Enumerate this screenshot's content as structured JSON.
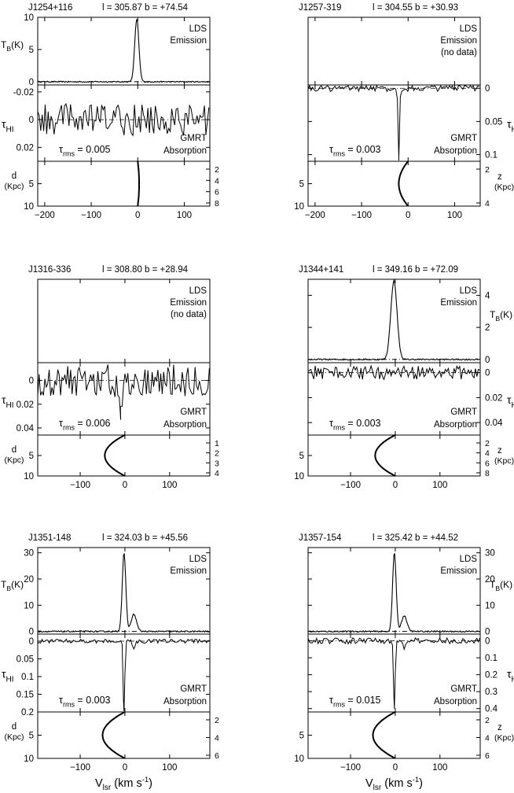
{
  "figure": {
    "xlabel_main": "V",
    "xlabel_sub": "lsr",
    "xlabel_units": "(km s",
    "xlabel_exp": "-1",
    "xlabel_close": ")"
  },
  "chart_data": [
    {
      "type": "line",
      "source": "J1254+116",
      "coords": "l = 305.87  b = +74.54",
      "x_ticks": [
        -200,
        -100,
        0,
        100
      ],
      "xlim": [
        -215,
        155
      ],
      "emission": {
        "has_data": true,
        "label": "LDS",
        "label2": "Emission",
        "label3": "",
        "ylabel": "T",
        "ylabel_sub": "B",
        "ylabel_unit": "(K)",
        "ylabel_side": "left",
        "ylim": [
          -0.5,
          10
        ],
        "ticks": [
          0,
          5,
          10
        ],
        "peaks": [
          {
            "center": -2,
            "amp": 9.7,
            "width": 4.5
          }
        ]
      },
      "absorption": {
        "label": "GMRT",
        "label2": "Absorption",
        "ylabel": "τ",
        "ylabel_sub": "HI",
        "ylabel_side": "left",
        "ylim": [
          -0.025,
          0.03
        ],
        "ticks": [
          -0.02,
          0,
          0.02
        ],
        "tick_labels": [
          "-0.02",
          "0",
          "0.02"
        ],
        "rms_label": "τ",
        "rms_sub": "rms",
        "rms_value": "= 0.005",
        "noise": 0.0072,
        "dips": []
      },
      "distance": {
        "ylabel": "d",
        "ylabel2": "(Kpc)",
        "ylabel_side": "left",
        "ylim": [
          0,
          10
        ],
        "ticks": [
          5,
          10
        ],
        "right_ticks": [
          "2",
          "4",
          "6",
          "8"
        ],
        "right_label": "",
        "v_max": 3,
        "v_far": 0
      }
    },
    {
      "type": "line",
      "source": "J1257-319",
      "coords": "l = 304.55  b = +30.93",
      "x_ticks": [
        -200,
        -100,
        0,
        100
      ],
      "xlim": [
        -215,
        155
      ],
      "emission": {
        "has_data": false,
        "label": "LDS",
        "label2": "Emission",
        "label3": "(no data)",
        "ylabel": "",
        "ylabel_sub": "",
        "ylabel_unit": "",
        "ylabel_side": "none",
        "ylim": [
          0,
          1
        ],
        "ticks": [],
        "peaks": []
      },
      "absorption": {
        "label": "GMRT",
        "label2": "Absorption",
        "ylabel": "τ",
        "ylabel_sub": "HI",
        "ylabel_side": "right",
        "ylim": [
          -0.005,
          0.11
        ],
        "ticks": [
          0,
          0.05,
          0.1
        ],
        "tick_labels": [
          "0",
          "0.05",
          "0.1"
        ],
        "rms_label": "τ",
        "rms_sub": "rms",
        "rms_value": "= 0.003",
        "noise": 0.003,
        "dips": [
          {
            "center": -20,
            "amp": 0.108,
            "width": 1.6
          }
        ]
      },
      "distance": {
        "ylabel": "",
        "ylabel2": "",
        "ylabel_side": "left",
        "ylim": [
          0,
          10
        ],
        "ticks": [
          5,
          10
        ],
        "right_ticks": [
          "2",
          "4"
        ],
        "right_label": "z",
        "v_max": -20,
        "v_far": 0
      }
    },
    {
      "type": "line",
      "source": "J1316-336",
      "coords": "l = 308.80  b = +28.94",
      "x_ticks": [
        -100,
        0,
        100
      ],
      "xlim": [
        -195,
        190
      ],
      "emission": {
        "has_data": false,
        "label": "LDS",
        "label2": "Emission",
        "label3": "(no data)",
        "ylabel": "",
        "ylabel_sub": "",
        "ylabel_unit": "",
        "ylabel_side": "none",
        "ylim": [
          0,
          1
        ],
        "ticks": [],
        "peaks": []
      },
      "absorption": {
        "label": "GMRT",
        "label2": "Absorption",
        "ylabel": "τ",
        "ylabel_sub": "HI",
        "ylabel_side": "left",
        "ylim": [
          -0.015,
          0.046
        ],
        "ticks": [
          0,
          0.02,
          0.04
        ],
        "tick_labels": [
          "0",
          "0.02",
          "0.04"
        ],
        "rms_label": "τ",
        "rms_sub": "rms",
        "rms_value": "= 0.006",
        "noise": 0.0085,
        "dips": [
          {
            "center": -10,
            "amp": 0.022,
            "width": 6
          }
        ]
      },
      "distance": {
        "ylabel": "d",
        "ylabel2": "(Kpc)",
        "ylabel_side": "left",
        "ylim": [
          0,
          10
        ],
        "ticks": [
          5,
          10
        ],
        "right_ticks": [
          "1",
          "2",
          "3",
          "4"
        ],
        "right_label": "",
        "v_max": -45,
        "v_far": 0
      }
    },
    {
      "type": "line",
      "source": "J1344+141",
      "coords": "l = 349.16  b = +72.09",
      "x_ticks": [
        -100,
        0,
        100
      ],
      "xlim": [
        -195,
        190
      ],
      "emission": {
        "has_data": true,
        "label": "LDS",
        "label2": "Emission",
        "label3": "",
        "ylabel": "T",
        "ylabel_sub": "B",
        "ylabel_unit": "(K)",
        "ylabel_side": "right",
        "ylim": [
          -0.2,
          5
        ],
        "ticks": [
          0,
          2,
          4
        ],
        "peaks": [
          {
            "center": -3,
            "amp": 4.9,
            "width": 7
          }
        ]
      },
      "absorption": {
        "label": "GMRT",
        "label2": "Absorption",
        "ylabel": "τ",
        "ylabel_sub": "HI",
        "ylabel_side": "right",
        "ylim": [
          -0.008,
          0.05
        ],
        "ticks": [
          0,
          0.02,
          0.04
        ],
        "tick_labels": [
          "0",
          "0.02",
          "0.04"
        ],
        "rms_label": "τ",
        "rms_sub": "rms",
        "rms_value": "= 0.003",
        "noise": 0.0035,
        "dips": []
      },
      "distance": {
        "ylabel": "",
        "ylabel2": "",
        "ylabel_side": "left",
        "ylim": [
          0,
          10
        ],
        "ticks": [
          5,
          10
        ],
        "right_ticks": [
          "2",
          "4",
          "6",
          "8"
        ],
        "right_label": "z",
        "v_max": -45,
        "v_far": 0
      }
    },
    {
      "type": "line",
      "source": "J1351-148",
      "coords": "l = 324.03  b = +45.56",
      "x_ticks": [
        -100,
        0,
        100
      ],
      "xlim": [
        -195,
        190
      ],
      "emission": {
        "has_data": true,
        "label": "LDS",
        "label2": "Emission",
        "label3": "",
        "ylabel": "T",
        "ylabel_sub": "B",
        "ylabel_unit": "(K)",
        "ylabel_side": "left",
        "ylim": [
          -1,
          32
        ],
        "ticks": [
          0,
          10,
          20,
          30
        ],
        "peaks": [
          {
            "center": -2,
            "amp": 30,
            "width": 4
          },
          {
            "center": 20,
            "amp": 6.5,
            "width": 6
          }
        ]
      },
      "absorption": {
        "label": "GMRT",
        "label2": "Absorption",
        "ylabel": "τ",
        "ylabel_sub": "HI",
        "ylabel_side": "left",
        "ylim": [
          -0.02,
          0.2
        ],
        "ticks": [
          0,
          0.05,
          0.1,
          0.15,
          0.2
        ],
        "tick_labels": [
          "0",
          "0.05",
          "0.1",
          "0.15",
          "0.2"
        ],
        "rms_label": "τ",
        "rms_sub": "rms",
        "rms_value": "= 0.003",
        "noise": 0.0035,
        "dips": [
          {
            "center": -2,
            "amp": 0.2,
            "width": 1.8
          },
          {
            "center": 20,
            "amp": 0.022,
            "width": 3
          }
        ]
      },
      "distance": {
        "ylabel": "d",
        "ylabel2": "(Kpc)",
        "ylabel_side": "left",
        "ylim": [
          0,
          10
        ],
        "ticks": [
          5,
          10
        ],
        "right_ticks": [
          "2",
          "4",
          "6"
        ],
        "right_label": "",
        "v_max": -50,
        "v_far": 0
      }
    },
    {
      "type": "line",
      "source": "J1357-154",
      "coords": "l = 325.42  b = +44.52",
      "x_ticks": [
        -100,
        0,
        100
      ],
      "xlim": [
        -195,
        190
      ],
      "emission": {
        "has_data": true,
        "label": "LDS",
        "label2": "Emission",
        "label3": "",
        "ylabel": "T",
        "ylabel_sub": "B",
        "ylabel_unit": "(K)",
        "ylabel_side": "right",
        "ylim": [
          -1,
          32
        ],
        "ticks": [
          0,
          10,
          20,
          30
        ],
        "peaks": [
          {
            "center": -2,
            "amp": 30,
            "width": 4
          },
          {
            "center": 20,
            "amp": 6,
            "width": 6
          }
        ]
      },
      "absorption": {
        "label": "GMRT",
        "label2": "Absorption",
        "ylabel": "τ",
        "ylabel_sub": "HI",
        "ylabel_side": "right",
        "ylim": [
          -0.04,
          0.42
        ],
        "ticks": [
          0,
          0.1,
          0.2,
          0.3,
          0.4
        ],
        "tick_labels": [
          "0",
          "0.1",
          "0.2",
          "0.3",
          "0.4"
        ],
        "rms_label": "τ",
        "rms_sub": "rms",
        "rms_value": "= 0.015",
        "noise": 0.011,
        "dips": [
          {
            "center": -2,
            "amp": 0.4,
            "width": 1.8
          },
          {
            "center": 20,
            "amp": 0.05,
            "width": 3
          }
        ]
      },
      "distance": {
        "ylabel": "",
        "ylabel2": "",
        "ylabel_side": "left",
        "ylim": [
          0,
          10
        ],
        "ticks": [
          5,
          10
        ],
        "right_ticks": [
          "2",
          "4",
          "6"
        ],
        "right_label": "z",
        "v_max": -50,
        "v_far": 0
      }
    }
  ]
}
